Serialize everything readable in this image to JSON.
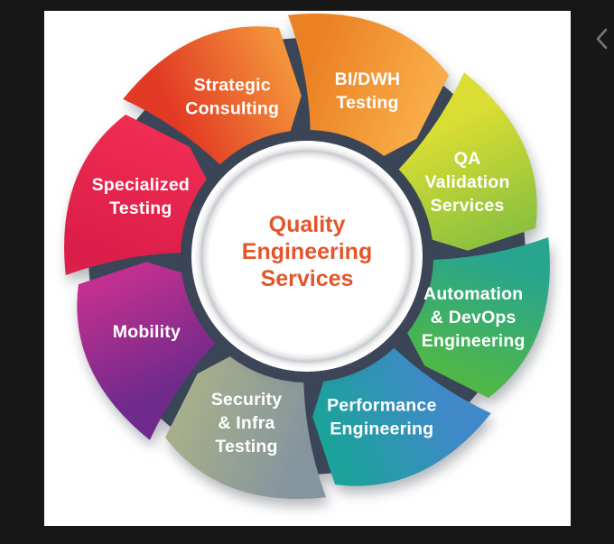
{
  "window": {
    "background_color": "#171717",
    "card_background_color": "#ffffff"
  },
  "carousel": {
    "prev_icon": "chevron-left",
    "prev_icon_color": "#767676"
  },
  "diagram": {
    "center": {
      "lines": [
        "Quality",
        "Engineering",
        "Services"
      ],
      "text_color": "#e4552b"
    },
    "ring_color": "#3a4557",
    "label_color": "#ffffff",
    "segments": [
      {
        "id": "bi-dwh-testing",
        "lines": [
          "BI/DWH",
          "Testing"
        ],
        "color_start": "#f8ac48",
        "color_end": "#ec8124"
      },
      {
        "id": "qa-validation-services",
        "lines": [
          "QA",
          "Validation",
          "Services"
        ],
        "color_start": "#8ec23e",
        "color_end": "#dade33"
      },
      {
        "id": "automation-devops-engineering",
        "lines": [
          "Automation",
          "& DevOps",
          "Engineering"
        ],
        "color_start": "#4fb747",
        "color_end": "#28a58e"
      },
      {
        "id": "performance-engineering",
        "lines": [
          "Performance",
          "Engineering"
        ],
        "color_start": "#1ba39a",
        "color_end": "#4089c9"
      },
      {
        "id": "security-infra-testing",
        "lines": [
          "Security",
          "& Infra",
          "Testing"
        ],
        "color_start": "#a6ae8b",
        "color_end": "#85959e"
      },
      {
        "id": "mobility",
        "lines": [
          "Mobility"
        ],
        "color_start": "#c13090",
        "color_end": "#6f2a8b"
      },
      {
        "id": "specialized-testing",
        "lines": [
          "Specialized",
          "Testing"
        ],
        "color_start": "#ef2c52",
        "color_end": "#dc1e4a"
      },
      {
        "id": "strategic-consulting",
        "lines": [
          "Strategic",
          "Consulting"
        ],
        "color_start": "#f3923a",
        "color_end": "#e23a24"
      }
    ]
  }
}
